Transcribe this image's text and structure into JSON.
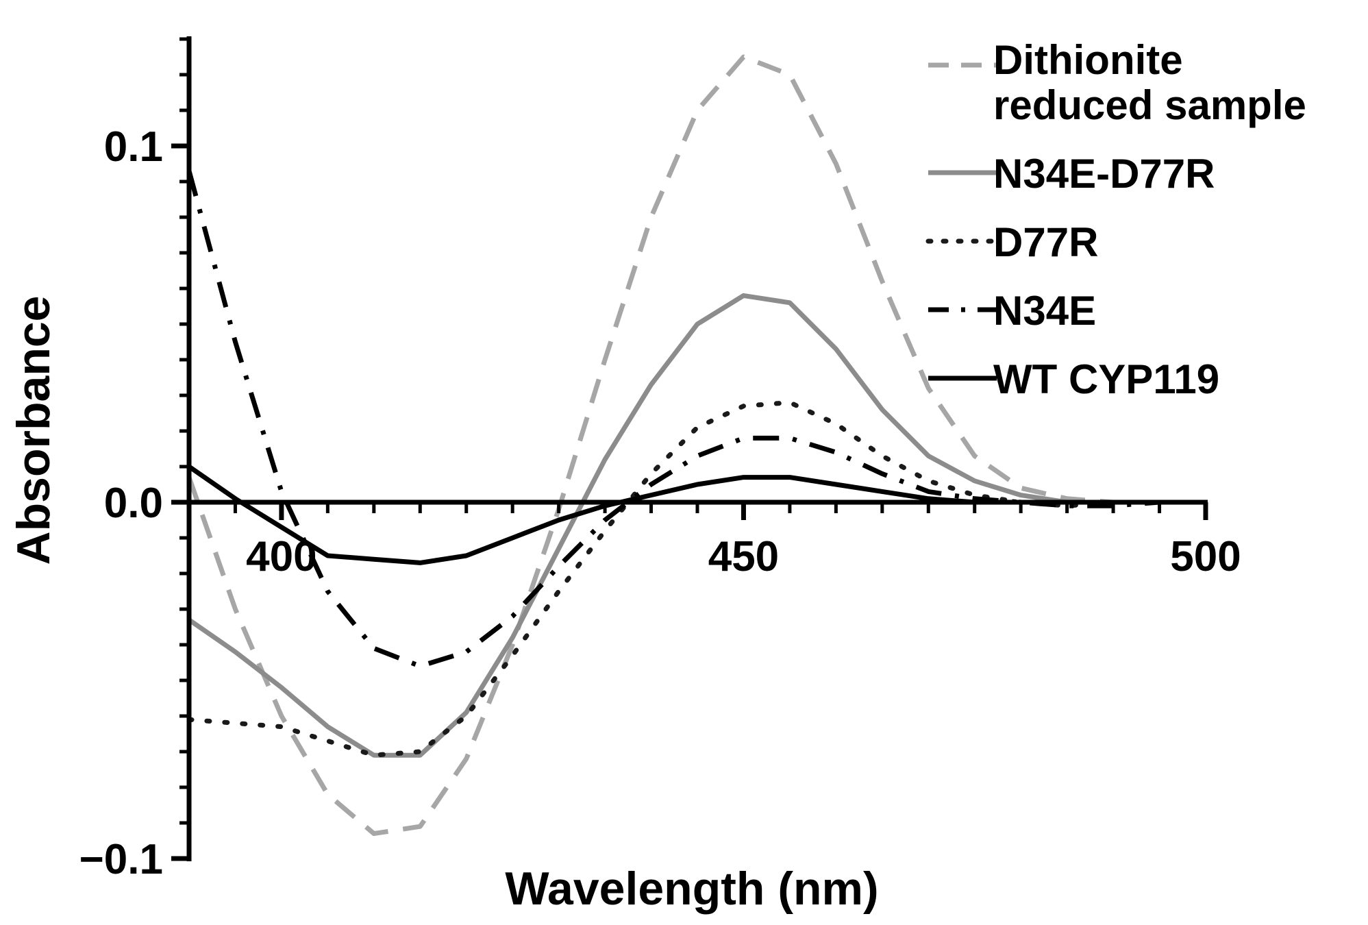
{
  "chart_data": {
    "type": "line",
    "title": "",
    "xlabel": "Wavelength (nm)",
    "ylabel": "Absorbance",
    "xlim": [
      390,
      500
    ],
    "ylim": [
      -0.1,
      0.13
    ],
    "x_ticks": [
      {
        "value": 400,
        "label": "400"
      },
      {
        "value": 450,
        "label": "450"
      },
      {
        "value": 500,
        "label": "500"
      }
    ],
    "y_ticks": [
      {
        "value": 0.1,
        "label": "0.1"
      },
      {
        "value": 0.0,
        "label": "0.0"
      },
      {
        "value": -0.1,
        "label": "−0.1"
      }
    ],
    "grid": false,
    "legend_position": "top-right",
    "x": [
      390,
      395,
      400,
      405,
      410,
      415,
      420,
      425,
      430,
      435,
      440,
      445,
      450,
      455,
      460,
      465,
      470,
      475,
      480,
      485,
      490,
      495,
      500
    ],
    "series": [
      {
        "name": "Dithionite reduced sample",
        "legend_lines": [
          "Dithionite",
          "reduced sample"
        ],
        "color": "#a6a6a6",
        "dash": "dashed",
        "values": [
          0.007,
          -0.03,
          -0.06,
          -0.082,
          -0.093,
          -0.091,
          -0.072,
          -0.04,
          -0.002,
          0.04,
          0.08,
          0.11,
          0.125,
          0.12,
          0.095,
          0.062,
          0.032,
          0.013,
          0.004,
          0.001,
          0.0,
          0.0,
          0.0
        ]
      },
      {
        "name": "N34E-D77R",
        "legend_lines": [
          "N34E-D77R"
        ],
        "color": "#8c8c8c",
        "dash": "solid",
        "values": [
          -0.033,
          -0.042,
          -0.052,
          -0.063,
          -0.071,
          -0.071,
          -0.059,
          -0.038,
          -0.013,
          0.012,
          0.033,
          0.05,
          0.058,
          0.056,
          0.043,
          0.026,
          0.013,
          0.006,
          0.002,
          0.0,
          0.0,
          0.0,
          0.0
        ]
      },
      {
        "name": "D77R",
        "legend_lines": [
          "D77R"
        ],
        "color": "#1a1a1a",
        "dash": "dotted",
        "values": [
          -0.061,
          -0.062,
          -0.063,
          -0.067,
          -0.071,
          -0.07,
          -0.06,
          -0.043,
          -0.025,
          -0.008,
          0.008,
          0.021,
          0.027,
          0.028,
          0.022,
          0.013,
          0.006,
          0.002,
          0.0,
          -0.001,
          0.0,
          0.0,
          0.0
        ]
      },
      {
        "name": "N34E",
        "legend_lines": [
          "N34E"
        ],
        "color": "#000000",
        "dash": "dashdot",
        "values": [
          0.093,
          0.045,
          0.003,
          -0.025,
          -0.041,
          -0.046,
          -0.042,
          -0.032,
          -0.018,
          -0.005,
          0.005,
          0.013,
          0.018,
          0.018,
          0.014,
          0.008,
          0.003,
          0.001,
          0.0,
          -0.001,
          -0.001,
          0.0,
          0.0
        ]
      },
      {
        "name": "WT CYP119",
        "legend_lines": [
          "WT CYP119"
        ],
        "color": "#000000",
        "dash": "solid",
        "values": [
          0.01,
          0.001,
          -0.007,
          -0.015,
          -0.016,
          -0.017,
          -0.015,
          -0.01,
          -0.005,
          -0.001,
          0.002,
          0.005,
          0.007,
          0.007,
          0.005,
          0.003,
          0.001,
          0.0,
          0.0,
          0.0,
          0.0,
          0.0,
          0.0
        ]
      }
    ]
  }
}
